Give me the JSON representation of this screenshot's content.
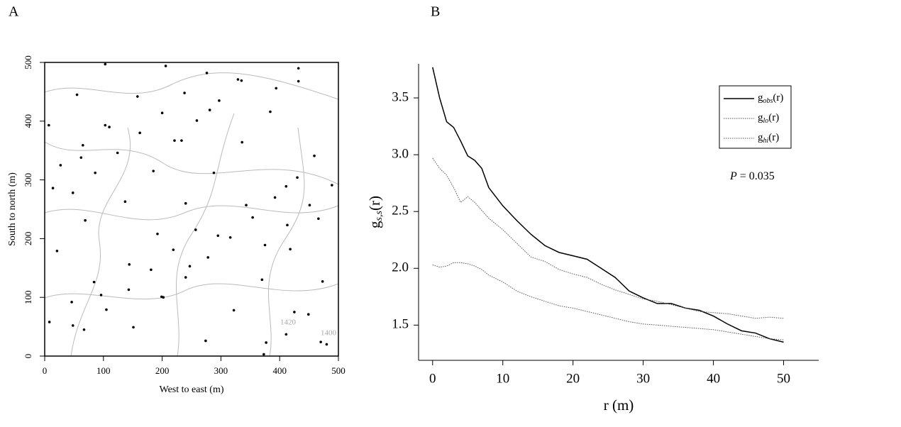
{
  "chart_data": [
    {
      "type": "scatter",
      "panel_label": "A",
      "x_label": "West to east (m)",
      "y_label": "South to north (m)",
      "xlim": [
        0,
        500
      ],
      "ylim": [
        0,
        500
      ],
      "xticks": [
        0,
        100,
        200,
        300,
        400,
        500
      ],
      "yticks": [
        0,
        100,
        200,
        300,
        400,
        500
      ],
      "color": "#000000",
      "annotations": [
        "1420",
        "1400"
      ],
      "x": [
        137,
        274,
        411,
        48,
        185,
        322,
        459,
        96,
        233,
        370,
        7,
        144,
        281,
        418,
        55,
        192,
        329,
        466,
        103,
        240,
        377,
        14,
        151,
        288,
        425,
        62,
        199,
        336,
        473,
        110,
        247,
        384,
        21,
        158,
        295,
        432,
        69,
        206,
        343,
        480,
        202,
        375,
        48,
        221,
        394,
        67,
        240,
        413,
        86,
        259,
        432,
        105,
        278,
        451,
        124,
        297,
        470,
        143,
        316,
        489,
        162,
        335,
        8,
        181,
        354,
        27,
        200,
        373,
        46,
        219,
        392,
        65,
        238,
        411,
        84,
        257,
        430,
        103,
        276,
        449
      ],
      "y": [
        263,
        26,
        289,
        52,
        315,
        78,
        341,
        104,
        367,
        130,
        393,
        156,
        419,
        182,
        445,
        208,
        471,
        234,
        497,
        260,
        23,
        286,
        49,
        312,
        75,
        338,
        101,
        364,
        127,
        390,
        153,
        416,
        179,
        442,
        205,
        468,
        231,
        494,
        257,
        20,
        100,
        189,
        278,
        367,
        456,
        45,
        134,
        223,
        312,
        401,
        490,
        79,
        168,
        257,
        346,
        435,
        24,
        113,
        202,
        291,
        380,
        469,
        58,
        147,
        236,
        325,
        414,
        3,
        92,
        181,
        270,
        359,
        448,
        37,
        126,
        215,
        304,
        393,
        482,
        71
      ]
    },
    {
      "type": "line",
      "panel_label": "B",
      "x_label": "r (m)",
      "y_label": [
        "g",
        "s,s",
        "(r)"
      ],
      "annotation": [
        "P",
        " = 0.035"
      ],
      "xlim": [
        -2,
        55
      ],
      "ylim": [
        1.19,
        3.8
      ],
      "xticks": [
        0,
        10,
        20,
        30,
        40,
        50
      ],
      "yticks": [
        1.5,
        {
          "value": 2,
          "label": "2.0"
        },
        2.5,
        {
          "value": 3,
          "label": "3.0"
        },
        3.5
      ],
      "x": [
        0,
        1,
        2,
        3,
        4,
        5,
        6,
        7,
        8,
        10,
        12,
        14,
        16,
        18,
        20,
        22,
        24,
        26,
        28,
        30,
        32,
        34,
        36,
        38,
        40,
        42,
        44,
        46,
        48,
        50
      ],
      "series": [
        {
          "name": [
            "g",
            "obs",
            "(r)"
          ],
          "color": "#000000",
          "style": "solid",
          "values": [
            3.77,
            3.5,
            3.29,
            3.24,
            3.12,
            2.99,
            2.95,
            2.88,
            2.71,
            2.55,
            2.42,
            2.3,
            2.2,
            2.14,
            2.11,
            2.08,
            2.0,
            1.92,
            1.8,
            1.74,
            1.69,
            1.69,
            1.65,
            1.63,
            1.58,
            1.51,
            1.45,
            1.43,
            1.38,
            1.35
          ]
        },
        {
          "name": [
            "g",
            "lo",
            "(r)"
          ],
          "color": "#555555",
          "style": "dotted",
          "values": [
            2.03,
            2.01,
            2.02,
            2.05,
            2.05,
            2.04,
            2.02,
            1.99,
            1.94,
            1.88,
            1.8,
            1.75,
            1.71,
            1.67,
            1.65,
            1.62,
            1.59,
            1.56,
            1.53,
            1.51,
            1.5,
            1.49,
            1.48,
            1.47,
            1.46,
            1.44,
            1.42,
            1.4,
            1.38,
            1.37
          ]
        },
        {
          "name": [
            "g",
            "hi",
            "(r)"
          ],
          "color": "#555555",
          "style": "dotted",
          "values": [
            2.97,
            2.88,
            2.82,
            2.71,
            2.58,
            2.63,
            2.58,
            2.51,
            2.44,
            2.34,
            2.22,
            2.1,
            2.06,
            1.99,
            1.95,
            1.92,
            1.86,
            1.81,
            1.77,
            1.73,
            1.71,
            1.68,
            1.65,
            1.62,
            1.61,
            1.6,
            1.58,
            1.56,
            1.57,
            1.56
          ]
        }
      ]
    }
  ]
}
